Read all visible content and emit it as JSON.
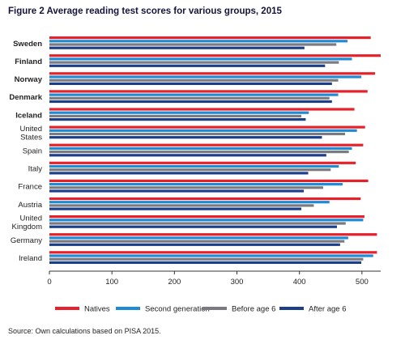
{
  "figure": {
    "title": "Figure 2 Average reading test scores for various groups, 2015",
    "source": "Source: Own calculations based on PISA 2015."
  },
  "chart_data": {
    "type": "bar",
    "orientation": "horizontal",
    "title": "Figure 2 Average reading test scores for various groups, 2015",
    "xlabel": "",
    "ylabel": "",
    "xlim": [
      0,
      530
    ],
    "xticks": [
      0,
      100,
      200,
      300,
      400,
      500
    ],
    "grid": false,
    "legend_position": "bottom",
    "categories": [
      {
        "label": [
          "Sweden"
        ],
        "bold": true
      },
      {
        "label": [
          "Finland"
        ],
        "bold": true
      },
      {
        "label": [
          "Norway"
        ],
        "bold": true
      },
      {
        "label": [
          "Denmark"
        ],
        "bold": true
      },
      {
        "label": [
          "Iceland"
        ],
        "bold": true
      },
      {
        "label": [
          "United",
          "States"
        ],
        "bold": false
      },
      {
        "label": [
          "Spain"
        ],
        "bold": false
      },
      {
        "label": [
          "Italy"
        ],
        "bold": false
      },
      {
        "label": [
          "France"
        ],
        "bold": false
      },
      {
        "label": [
          "Austria"
        ],
        "bold": false
      },
      {
        "label": [
          "United",
          "Kingdom"
        ],
        "bold": false
      },
      {
        "label": [
          "Germany"
        ],
        "bold": false
      },
      {
        "label": [
          "Ireland"
        ],
        "bold": false
      }
    ],
    "series": [
      {
        "name": "Natives",
        "color": "#e8202a",
        "values": [
          514,
          530,
          521,
          509,
          488,
          505,
          502,
          490,
          510,
          498,
          504,
          524,
          524
        ]
      },
      {
        "name": "Second generation",
        "color": "#1e8bd6",
        "values": [
          477,
          484,
          499,
          462,
          415,
          492,
          484,
          463,
          469,
          448,
          502,
          478,
          518
        ]
      },
      {
        "name": "Before age 6",
        "color": "#7a7a80",
        "values": [
          459,
          463,
          462,
          448,
          403,
          473,
          479,
          450,
          438,
          423,
          474,
          472,
          502
        ]
      },
      {
        "name": "After age 6",
        "color": "#1c3f8a",
        "values": [
          408,
          441,
          452,
          452,
          410,
          436,
          443,
          414,
          407,
          403,
          460,
          465,
          499
        ]
      }
    ]
  }
}
